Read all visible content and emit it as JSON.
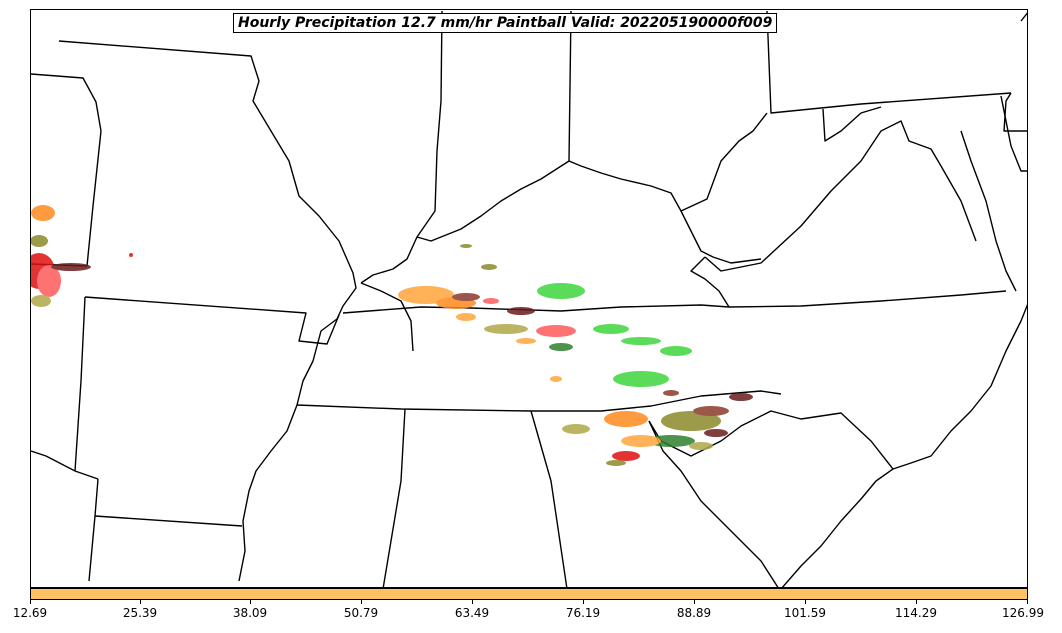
{
  "title": "Hourly Precipitation 12.7 mm/hr Paintball Valid: 202205190000f009",
  "colorbar": {
    "color": "#ffc262",
    "ticks": [
      "12.69",
      "25.39",
      "38.09",
      "50.79",
      "63.49",
      "76.19",
      "88.89",
      "101.59",
      "114.29",
      "126.99"
    ]
  },
  "member_colors": [
    "#ff8a1e",
    "#e01010",
    "#ff5a5a",
    "#ffa53a",
    "#8a8a2a",
    "#b0a848",
    "#6a1c1c",
    "#3ed63e",
    "#2f7f2f",
    "#8a3a2a"
  ]
}
